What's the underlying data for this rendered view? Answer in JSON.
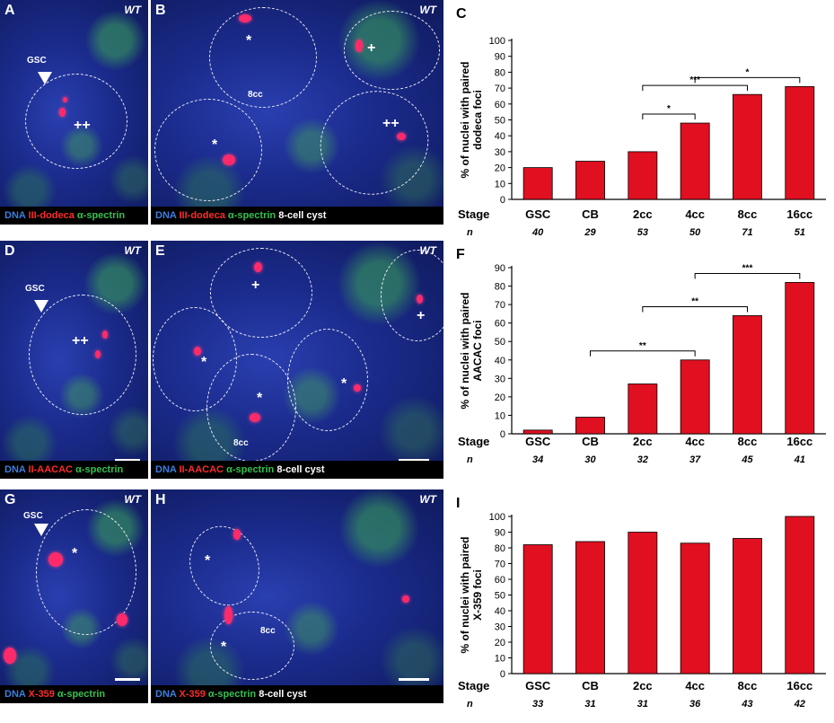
{
  "panels": {
    "A": {
      "letter": "A",
      "wt": "WT",
      "gsc": "GSC",
      "marks": [
        "++"
      ],
      "caption": {
        "dna": "DNA",
        "probe": "III-dodeca",
        "spectrin": "α-spectrin"
      }
    },
    "B": {
      "letter": "B",
      "wt": "WT",
      "cc": "8cc",
      "marks": [
        "*",
        "+",
        "*",
        "++"
      ],
      "caption": {
        "dna": "DNA",
        "probe": "III-dodeca",
        "spectrin": "α-spectrin",
        "cyst": "8-cell cyst"
      }
    },
    "D": {
      "letter": "D",
      "wt": "WT",
      "gsc": "GSC",
      "marks": [
        "++"
      ],
      "caption": {
        "dna": "DNA",
        "probe": "II-AACAC",
        "spectrin": "α-spectrin"
      }
    },
    "E": {
      "letter": "E",
      "wt": "WT",
      "cc": "8cc",
      "marks": [
        "+",
        "*",
        "*",
        "*",
        "+"
      ],
      "caption": {
        "dna": "DNA",
        "probe": "II-AACAC",
        "spectrin": "α-spectrin",
        "cyst": "8-cell cyst"
      }
    },
    "G": {
      "letter": "G",
      "wt": "WT",
      "gsc": "GSC",
      "marks": [
        "*"
      ],
      "caption": {
        "dna": "DNA",
        "probe": "X-359",
        "spectrin": "α-spectrin"
      }
    },
    "H": {
      "letter": "H",
      "wt": "WT",
      "cc": "8cc",
      "marks": [
        "*",
        "*"
      ],
      "caption": {
        "dna": "DNA",
        "probe": "X-359",
        "spectrin": "α-spectrin",
        "cyst": "8-cell cyst"
      }
    }
  },
  "chart_data": [
    {
      "panel": "C",
      "type": "bar",
      "ylabel": "% of nuclei with paired dodeca foci",
      "ylabel_lines": [
        "% of nuclei with paired",
        "dodeca foci"
      ],
      "row_label": "Stage",
      "n_label": "n",
      "categories": [
        "GSC",
        "CB",
        "2cc",
        "4cc",
        "8cc",
        "16cc"
      ],
      "values": [
        20,
        24,
        30,
        48,
        66,
        71
      ],
      "n": [
        "40",
        "29",
        "53",
        "50",
        "71",
        "51"
      ],
      "ylim": [
        0,
        100
      ],
      "yticks": [
        0,
        10,
        20,
        30,
        40,
        50,
        60,
        70,
        80,
        90,
        100
      ],
      "bar_color": "#e01021",
      "significance": [
        {
          "from": "2cc",
          "to": "4cc",
          "label": "*"
        },
        {
          "from": "2cc",
          "to": "8cc",
          "label": "***"
        },
        {
          "from": "4cc",
          "to": "16cc",
          "label": "*"
        }
      ]
    },
    {
      "panel": "F",
      "type": "bar",
      "ylabel": "% of nuclei with paired AACAC foci",
      "ylabel_lines": [
        "% of nuclei with paired",
        "AACAC foci"
      ],
      "row_label": "Stage",
      "n_label": "n",
      "categories": [
        "GSC",
        "CB",
        "2cc",
        "4cc",
        "8cc",
        "16cc"
      ],
      "values": [
        2,
        9,
        27,
        40,
        64,
        82
      ],
      "n": [
        "34",
        "30",
        "32",
        "37",
        "45",
        "41"
      ],
      "ylim": [
        0,
        90
      ],
      "yticks": [
        0,
        10,
        20,
        30,
        40,
        50,
        60,
        70,
        80,
        90
      ],
      "bar_color": "#e01021",
      "significance": [
        {
          "from": "CB",
          "to": "4cc",
          "label": "**"
        },
        {
          "from": "2cc",
          "to": "8cc",
          "label": "**"
        },
        {
          "from": "4cc",
          "to": "16cc",
          "label": "***"
        }
      ]
    },
    {
      "panel": "I",
      "type": "bar",
      "ylabel": "% of nuclei with paired X-359 foci",
      "ylabel_lines": [
        "% of nuclei with paired",
        "X-359 foci"
      ],
      "row_label": "Stage",
      "n_label": "n",
      "categories": [
        "GSC",
        "CB",
        "2cc",
        "4cc",
        "8cc",
        "16cc"
      ],
      "values": [
        82,
        84,
        90,
        83,
        86,
        100
      ],
      "n": [
        "33",
        "31",
        "31",
        "36",
        "43",
        "42"
      ],
      "ylim": [
        0,
        100
      ],
      "yticks": [
        0,
        10,
        20,
        30,
        40,
        50,
        60,
        70,
        80,
        90,
        100
      ],
      "bar_color": "#e01021",
      "significance": []
    }
  ]
}
